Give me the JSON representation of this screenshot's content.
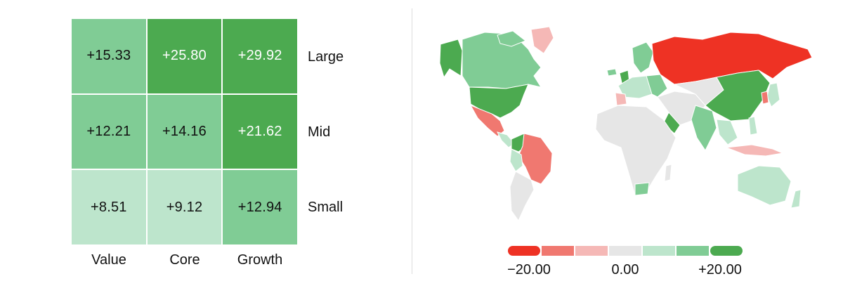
{
  "style_box": {
    "rows": [
      "Large",
      "Mid",
      "Small"
    ],
    "columns": [
      "Value",
      "Core",
      "Growth"
    ],
    "cells": [
      [
        "+15.33",
        "+25.80",
        "+29.92"
      ],
      [
        "+12.21",
        "+14.16",
        "+21.62"
      ],
      [
        "+8.51",
        "+9.12",
        "+12.94"
      ]
    ]
  },
  "chart_data": [
    {
      "type": "heatmap",
      "rows": [
        "Large",
        "Mid",
        "Small"
      ],
      "columns": [
        "Value",
        "Core",
        "Growth"
      ],
      "values": [
        [
          15.33,
          25.8,
          29.92
        ],
        [
          12.21,
          14.16,
          21.62
        ],
        [
          8.51,
          9.12,
          12.94
        ]
      ]
    },
    {
      "type": "heatmap",
      "legend_ticks": [
        "−20.00",
        "0.00",
        "+20.00"
      ],
      "scale": {
        "min": -20,
        "max": 20
      },
      "color_bins": [
        "#ee3224",
        "#f07870",
        "#f5b8b6",
        "#e6e6e6",
        "#bde5cc",
        "#80cc95",
        "#4caa50"
      ]
    }
  ],
  "colors": {
    "strong_positive": "#4caa50",
    "positive": "#80cc95",
    "mild_positive": "#bde5cc",
    "neutral": "#e6e6e6",
    "mild_negative": "#f5b8b6",
    "negative": "#f07870",
    "strong_negative": "#ee3224"
  }
}
